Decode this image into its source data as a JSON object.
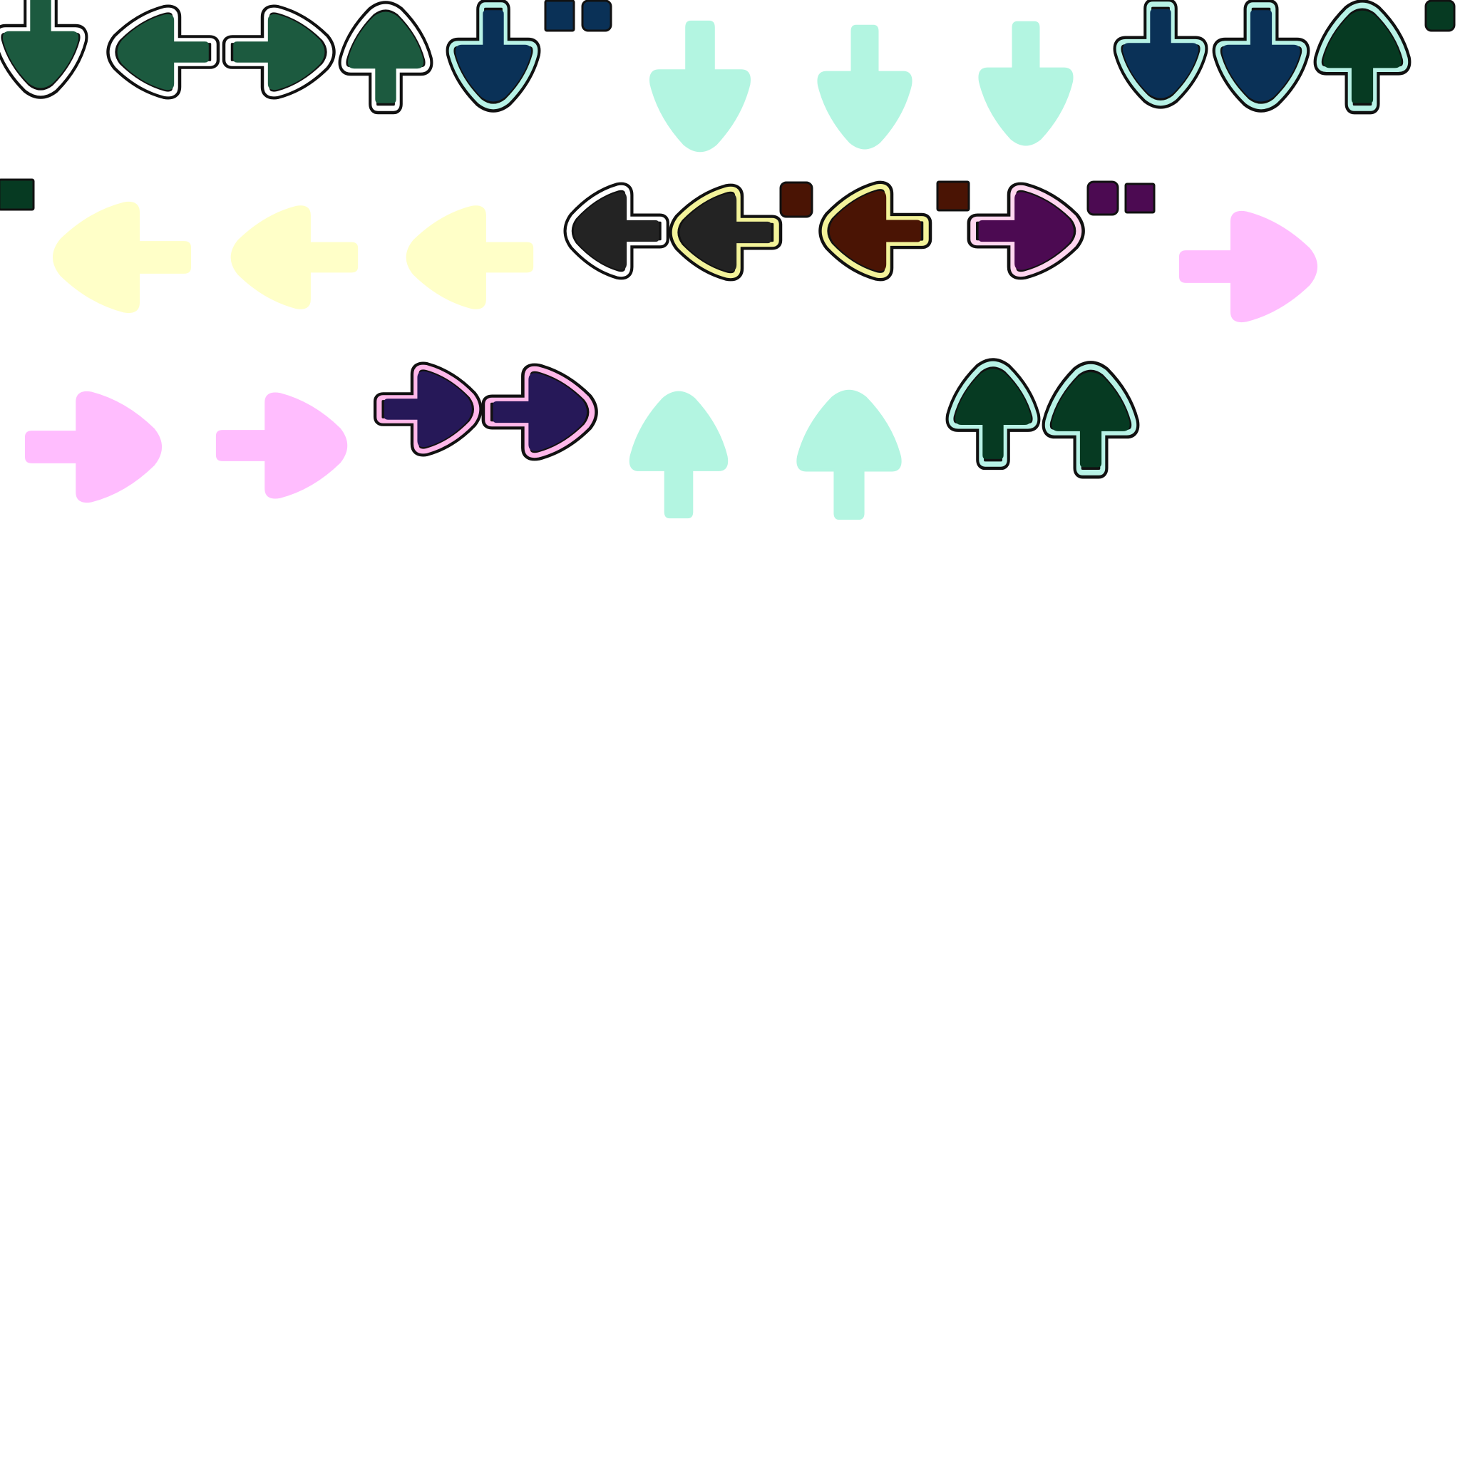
{
  "sheet": {
    "rows": [
      {
        "items": [
          {
            "kind": "arrow",
            "direction": "down",
            "style": "note",
            "fill": "#1c5a3f",
            "outline": "#111111",
            "ring": "#ffffff"
          },
          {
            "kind": "arrow",
            "direction": "left",
            "style": "note",
            "fill": "#1c5a3f",
            "outline": "#111111",
            "ring": "#ffffff"
          },
          {
            "kind": "arrow",
            "direction": "right",
            "style": "note",
            "fill": "#1c5a3f",
            "outline": "#111111",
            "ring": "#ffffff"
          },
          {
            "kind": "arrow",
            "direction": "up",
            "style": "note",
            "fill": "#1c5a3f",
            "outline": "#111111",
            "ring": "#ffffff"
          },
          {
            "kind": "arrow",
            "direction": "down",
            "style": "note",
            "fill": "#0a3157",
            "outline": "#111111",
            "ring": "#b8f2e6"
          },
          {
            "kind": "hold-piece",
            "fill": "#0a3157"
          },
          {
            "kind": "hold-end",
            "fill": "#0a3157"
          },
          {
            "kind": "arrow",
            "direction": "down",
            "style": "press",
            "fill": "#b3f5e1"
          },
          {
            "kind": "arrow",
            "direction": "down",
            "style": "press",
            "fill": "#b3f5e1"
          },
          {
            "kind": "arrow",
            "direction": "down",
            "style": "press",
            "fill": "#b3f5e1"
          },
          {
            "kind": "arrow",
            "direction": "down",
            "style": "note",
            "fill": "#0a3157",
            "outline": "#111111",
            "ring": "#b8f2e6"
          },
          {
            "kind": "arrow",
            "direction": "down",
            "style": "note",
            "fill": "#0a3157",
            "outline": "#111111",
            "ring": "#b8f2e6"
          },
          {
            "kind": "arrow",
            "direction": "up",
            "style": "note",
            "fill": "#063a22",
            "outline": "#111111",
            "ring": "#b8f2e6"
          },
          {
            "kind": "hold-end",
            "fill": "#063a22"
          }
        ]
      },
      {
        "items": [
          {
            "kind": "hold-piece",
            "fill": "#063a22"
          },
          {
            "kind": "arrow",
            "direction": "left",
            "style": "press",
            "fill": "#ffffc8"
          },
          {
            "kind": "arrow",
            "direction": "left",
            "style": "press",
            "fill": "#ffffc8"
          },
          {
            "kind": "arrow",
            "direction": "left",
            "style": "press",
            "fill": "#ffffc8"
          },
          {
            "kind": "arrow",
            "direction": "left",
            "style": "note",
            "fill": "#232323",
            "outline": "#111111",
            "ring": "#ffffff"
          },
          {
            "kind": "arrow",
            "direction": "left",
            "style": "note",
            "fill": "#232323",
            "outline": "#111111",
            "ring": "#f3f39a"
          },
          {
            "kind": "hold-end",
            "fill": "#4a1404"
          },
          {
            "kind": "arrow",
            "direction": "left",
            "style": "note",
            "fill": "#4a1404",
            "outline": "#111111",
            "ring": "#f3f39a"
          },
          {
            "kind": "hold-piece",
            "fill": "#4a1404"
          },
          {
            "kind": "arrow",
            "direction": "right",
            "style": "note",
            "fill": "#4c0a52",
            "outline": "#111111",
            "ring": "#ffd6ef"
          },
          {
            "kind": "hold-end",
            "fill": "#4c0a52"
          },
          {
            "kind": "hold-piece",
            "fill": "#4c0a52"
          },
          {
            "kind": "arrow",
            "direction": "right",
            "style": "press",
            "fill": "#ffbdfe"
          }
        ]
      },
      {
        "items": [
          {
            "kind": "arrow",
            "direction": "right",
            "style": "press",
            "fill": "#ffbdfe"
          },
          {
            "kind": "arrow",
            "direction": "right",
            "style": "press",
            "fill": "#ffbdfe"
          },
          {
            "kind": "arrow",
            "direction": "right",
            "style": "note",
            "fill": "#261858",
            "outline": "#111111",
            "ring": "#ffb8ea"
          },
          {
            "kind": "arrow",
            "direction": "right",
            "style": "note",
            "fill": "#261858",
            "outline": "#111111",
            "ring": "#ffb8ea"
          },
          {
            "kind": "arrow",
            "direction": "up",
            "style": "press",
            "fill": "#b3f5e1"
          },
          {
            "kind": "arrow",
            "direction": "up",
            "style": "press",
            "fill": "#b3f5e1"
          },
          {
            "kind": "arrow",
            "direction": "up",
            "style": "note",
            "fill": "#063a22",
            "outline": "#111111",
            "ring": "#b8f2e6"
          },
          {
            "kind": "arrow",
            "direction": "up",
            "style": "note",
            "fill": "#063a22",
            "outline": "#111111",
            "ring": "#b8f2e6"
          }
        ]
      }
    ]
  }
}
